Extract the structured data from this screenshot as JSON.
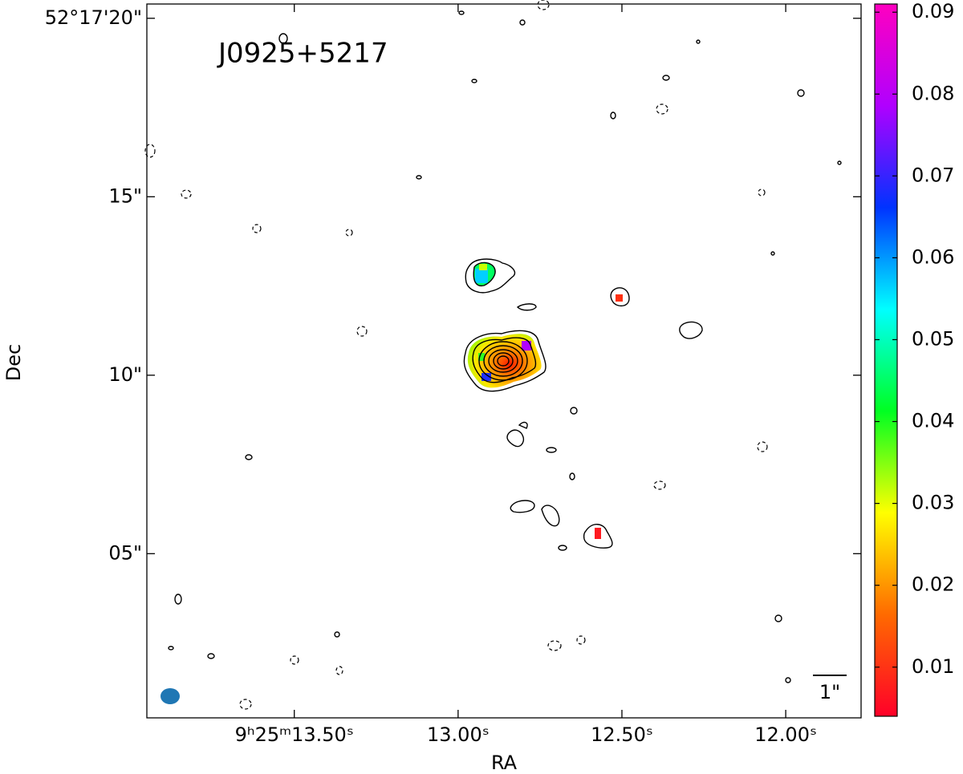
{
  "chart_data": {
    "type": "image",
    "title": "J0925+5217",
    "x_label": "RA",
    "y_label": "Dec",
    "xlim": [
      13.95,
      11.77
    ],
    "xticks": [
      {
        "value": 13.5,
        "label": "9ʰ25ᵐ13.50ˢ"
      },
      {
        "value": 13.0,
        "label": "13.00ˢ"
      },
      {
        "value": 12.5,
        "label": "12.50ˢ"
      },
      {
        "value": 12.0,
        "label": "12.00ˢ"
      }
    ],
    "ylim": [
      0.4,
      20.4
    ],
    "yticks": [
      {
        "value": 20,
        "label": "52°17'20\""
      },
      {
        "value": 15,
        "label": "15\""
      },
      {
        "value": 10,
        "label": "10\""
      },
      {
        "value": 5,
        "label": "05\""
      }
    ],
    "scale_bar_label": "1\"",
    "colorbar": {
      "clim": [
        0.004,
        0.091
      ],
      "ticks": [
        0.01,
        0.02,
        0.03,
        0.04,
        0.05,
        0.06,
        0.07,
        0.08,
        0.09
      ],
      "colors": [
        "#ff0029",
        "#ff6a00",
        "#ffff00",
        "#00ff22",
        "#00ffff",
        "#0033ff",
        "#b000ff",
        "#ff00bf"
      ]
    }
  }
}
